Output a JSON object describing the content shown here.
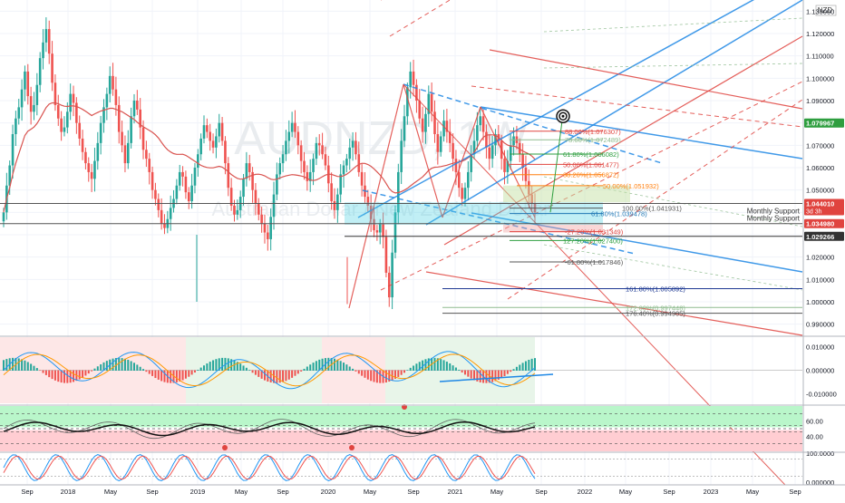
{
  "chart_data": {
    "type": "candlestick",
    "title": "AUDNZD",
    "watermark": {
      "symbol": "AUDNZD, 1W",
      "name": "Australian Dollar / New Zealand Dollar"
    },
    "currency_label": "NZD",
    "x_tick_labels": [
      "Sep",
      "2018",
      "May",
      "Sep",
      "2019",
      "May",
      "Sep",
      "2020",
      "May",
      "Sep",
      "2021",
      "May",
      "Sep",
      "2022",
      "May",
      "Sep",
      "2023",
      "May",
      "Sep"
    ],
    "price_axis": {
      "ylim": [
        0.985,
        1.135
      ],
      "ticks": [
        "1.130000",
        "1.120000",
        "1.110000",
        "1.100000",
        "1.090000",
        "1.080000",
        "1.070000",
        "1.060000",
        "1.050000",
        "1.040000",
        "1.030000",
        "1.020000",
        "1.010000",
        "1.000000",
        "0.990000"
      ],
      "tick_values": [
        1.13,
        1.12,
        1.11,
        1.1,
        1.09,
        1.08,
        1.07,
        1.06,
        1.05,
        1.04,
        1.03,
        1.02,
        1.01,
        1.0,
        0.99
      ]
    },
    "price_badges": [
      {
        "id": "last",
        "value": 1.079967,
        "text": "1.079967",
        "color": "#2e9e3f"
      },
      {
        "id": "close",
        "value": 1.04401,
        "text": "1.044010",
        "sub": "3d 3h",
        "color": "#e0443f"
      },
      {
        "id": "s1",
        "value": 1.03498,
        "text": "1.034980",
        "color": "#e0443f"
      },
      {
        "id": "s2",
        "value": 1.029266,
        "text": "1.029266",
        "color": "#333333"
      }
    ],
    "support_labels": [
      "Monthly Support",
      "Monthly Support"
    ],
    "series": [
      {
        "name": "AUDNZD",
        "type": "candles",
        "closes": [
          1.04,
          1.052,
          1.061,
          1.075,
          1.082,
          1.087,
          1.095,
          1.103,
          1.092,
          1.085,
          1.088,
          1.097,
          1.109,
          1.116,
          1.122,
          1.111,
          1.098,
          1.088,
          1.082,
          1.076,
          1.078,
          1.085,
          1.093,
          1.089,
          1.08,
          1.073,
          1.067,
          1.062,
          1.058,
          1.055,
          1.063,
          1.071,
          1.08,
          1.087,
          1.093,
          1.101,
          1.095,
          1.088,
          1.076,
          1.07,
          1.062,
          1.071,
          1.083,
          1.09,
          1.086,
          1.078,
          1.068,
          1.064,
          1.058,
          1.05,
          1.046,
          1.041,
          1.035,
          1.033,
          1.037,
          1.042,
          1.046,
          1.052,
          1.058,
          1.056,
          1.049,
          1.045,
          1.052,
          1.06,
          1.066,
          1.073,
          1.079,
          1.076,
          1.072,
          1.069,
          1.074,
          1.08,
          1.072,
          1.062,
          1.051,
          1.043,
          1.039,
          1.041,
          1.047,
          1.055,
          1.062,
          1.058,
          1.05,
          1.044,
          1.039,
          1.035,
          1.031,
          1.028,
          1.038,
          1.048,
          1.057,
          1.062,
          1.066,
          1.072,
          1.076,
          1.08,
          1.076,
          1.07,
          1.063,
          1.058,
          1.054,
          1.058,
          1.064,
          1.071,
          1.07,
          1.066,
          1.061,
          1.053,
          1.045,
          1.041,
          1.048,
          1.057,
          1.061,
          1.064,
          1.069,
          1.072,
          1.066,
          1.058,
          1.052,
          1.047,
          1.043,
          1.037,
          1.032,
          1.031,
          1.035,
          1.029,
          1.013,
          1.002,
          1.022,
          1.04,
          1.058,
          1.072,
          1.083,
          1.096,
          1.103,
          1.097,
          1.09,
          1.082,
          1.076,
          1.084,
          1.093,
          1.085,
          1.075,
          1.067,
          1.074,
          1.081,
          1.076,
          1.071,
          1.064,
          1.058,
          1.051,
          1.046,
          1.051,
          1.058,
          1.066,
          1.072,
          1.079,
          1.083,
          1.076,
          1.069,
          1.064,
          1.07,
          1.075,
          1.072,
          1.064,
          1.058,
          1.063,
          1.07,
          1.074,
          1.071,
          1.066,
          1.06,
          1.054,
          1.048,
          1.044,
          1.04
        ]
      },
      {
        "name": "Moving average",
        "type": "line",
        "color": "#d9534f"
      }
    ],
    "fibonacci_retracement": [
      {
        "label": "88.00%(1.076307)",
        "value": 1.076307,
        "color": "#e0443f"
      },
      {
        "label": "78.60%(1.072489)",
        "value": 1.072489,
        "color": "#8fbc8f"
      },
      {
        "label": "61.80%(1.066082)",
        "value": 1.066082,
        "color": "#2e9e3f"
      },
      {
        "label": "50.00%(1.061477)",
        "value": 1.061477,
        "color": "#e0443f"
      },
      {
        "label": "38.20%(1.056872)",
        "value": 1.056872,
        "color": "#ff7f0e"
      },
      {
        "label": "50.00%(1.051932)",
        "value": 1.051932,
        "color": "#ff7f0e"
      },
      {
        "label": "100.00%(1.041931)",
        "value": 1.041931,
        "color": "#555555"
      },
      {
        "label": "61.80%(1.039478)",
        "value": 1.039478,
        "color": "#1f77b4"
      },
      {
        "label": "-27.20%(1.031349)",
        "value": 1.031349,
        "color": "#e0443f"
      },
      {
        "label": "127.20%(1.027400)",
        "value": 1.0274,
        "color": "#2e9e3f"
      },
      {
        "label": "-61.80%(1.017846)",
        "value": 1.017846,
        "color": "#555555"
      },
      {
        "label": "161.80%(1.005892)",
        "value": 1.005892,
        "color": "#1f3a93"
      },
      {
        "label": "172.00%(0.997448)",
        "value": 0.997448,
        "color": "#8fbc8f"
      },
      {
        "label": "176.40%(0.994905)",
        "value": 0.994905,
        "color": "#555555"
      }
    ],
    "indicator_panels": [
      {
        "name": "MACD",
        "ticks": [
          "0.010000",
          "0.000000",
          "-0.010000"
        ],
        "tick_values": [
          0.01,
          0.0,
          -0.01
        ]
      },
      {
        "name": "RSI",
        "ticks": [
          "60.00",
          "40.00"
        ],
        "tick_values": [
          60,
          40
        ]
      },
      {
        "name": "Stochastic RSI",
        "ticks": [
          "100.0000",
          "0.000000"
        ],
        "tick_values": [
          100,
          0
        ]
      }
    ],
    "grid": true,
    "legend": "none"
  }
}
